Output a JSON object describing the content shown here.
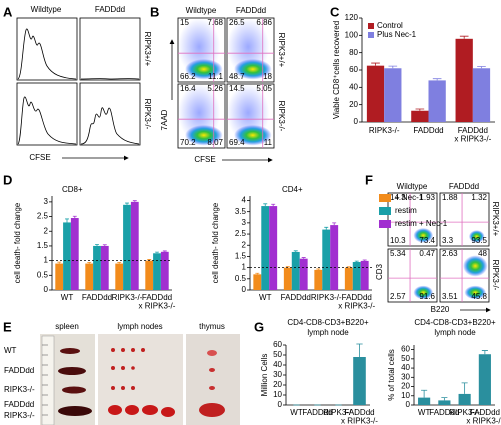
{
  "panel_labels": [
    "A",
    "B",
    "C",
    "D",
    "E",
    "F",
    "G"
  ],
  "panel_a": {
    "columns": [
      "Wildtype",
      "FADDdd"
    ],
    "rows": [
      "RIPK3+/+",
      "RIPK3-/-"
    ],
    "x_label": "CFSE"
  },
  "panel_b": {
    "columns": [
      "Wildtype",
      "FADDdd"
    ],
    "rows": [
      "RIPK3+/+",
      "RIPK3-/-"
    ],
    "x_label": "CFSE",
    "y_label": "7AAD",
    "quadrants": [
      [
        [
          15,
          7.68,
          66.2,
          11.1
        ],
        [
          26.5,
          6.86,
          48.7,
          18
        ]
      ],
      [
        [
          16.4,
          5.26,
          70.2,
          8.07
        ],
        [
          14.5,
          5.05,
          69.4,
          11
        ]
      ]
    ]
  },
  "panel_e": {
    "columns": [
      "spleen",
      "lymph nodes",
      "thymus"
    ],
    "rows": [
      "WT",
      "FADDdd",
      "RIPK3-/-",
      [
        "FADDdd",
        "RIPK3-/-"
      ]
    ]
  },
  "panel_f": {
    "columns": [
      "Wildtype",
      "FADDdd"
    ],
    "rows": [
      "RIPK3+/+",
      "RIPK3-/-"
    ],
    "x_label": "B220",
    "y_label": "CD3",
    "quadrants": [
      [
        [
          14.3,
          1.93,
          10.3,
          73.4
        ],
        [
          1.88,
          1.32,
          3.3,
          93.5
        ]
      ],
      [
        [
          5.34,
          0.47,
          2.57,
          91.6
        ],
        [
          2.63,
          48,
          3.51,
          45.8
        ]
      ]
    ]
  },
  "chart_data": [
    {
      "type": "bar",
      "y_label": "Viable CD8⁺cells recovered",
      "categories": [
        "RIPK3-/-",
        "FADDdd",
        [
          "FADDdd",
          "x RIPK3-/-"
        ]
      ],
      "series": [
        {
          "name": "Control",
          "color": "#b01c22",
          "values": [
            65,
            13,
            96
          ],
          "errors": [
            3,
            2,
            3
          ]
        },
        {
          "name": "Plus Nec-1",
          "color": "#7f7fe0",
          "values": [
            62,
            48,
            62
          ],
          "errors": [
            2.5,
            2,
            2
          ]
        }
      ],
      "ylim": [
        0,
        120
      ],
      "yticks": [
        0,
        20,
        40,
        60,
        80,
        100,
        120
      ],
      "legend": "upper left"
    },
    {
      "type": "bar",
      "title": "CD8+",
      "y_label": "cell death- fold change",
      "categories": [
        "WT",
        "FADDdd",
        "RIPK3-/-",
        [
          "FADDdd",
          "x RIPK3-/-"
        ]
      ],
      "series": [
        {
          "color": "#f28c1c",
          "values": [
            0.9,
            0.9,
            0.9,
            1.0
          ],
          "errors": [
            0.05,
            0.04,
            0.04,
            0.04
          ]
        },
        {
          "color": "#1aa0a8",
          "values": [
            2.3,
            1.5,
            2.9,
            1.25
          ],
          "errors": [
            0.12,
            0.05,
            0.06,
            0.04
          ]
        },
        {
          "color": "#a12fd0",
          "values": [
            2.45,
            1.5,
            3.0,
            1.3
          ],
          "errors": [
            0.06,
            0.04,
            0.04,
            0.03
          ]
        }
      ],
      "ylim": [
        0,
        3.2
      ],
      "yticks": [
        0,
        0.5,
        1,
        1.5,
        2,
        2.5,
        3
      ],
      "hline": 1
    },
    {
      "type": "bar",
      "title": "CD4+",
      "y_label": "cell death- fold change",
      "categories": [
        "WT",
        "FADDdd",
        "RIPK3-/-",
        [
          "FADDdd",
          "x RIPK3-/-"
        ]
      ],
      "series": [
        {
          "name": "+ Nec-1",
          "color": "#f28c1c",
          "values": [
            0.7,
            1.0,
            0.9,
            1.0
          ],
          "errors": [
            0.05,
            0.05,
            0.04,
            0.04
          ]
        },
        {
          "name": "restim",
          "color": "#1aa0a8",
          "values": [
            3.75,
            1.7,
            2.7,
            1.25
          ],
          "errors": [
            0.1,
            0.05,
            0.1,
            0.04
          ]
        },
        {
          "name": "restim + Nec-1",
          "color": "#a12fd0",
          "values": [
            3.75,
            1.4,
            2.9,
            1.3
          ],
          "errors": [
            0.08,
            0.05,
            0.1,
            0.04
          ]
        }
      ],
      "ylim": [
        0,
        4.2
      ],
      "yticks": [
        0,
        0.5,
        1,
        1.5,
        2,
        2.5,
        3,
        3.5,
        4
      ],
      "hline": 1,
      "legend": "right"
    },
    {
      "type": "bar",
      "title": "CD4-CD8-CD3+B220+",
      "subtitle": "lymph node",
      "y_label": "Million Cells",
      "categories": [
        "WT",
        "FADDdd",
        "RIPK3-/-",
        [
          "FADDdd",
          "x RIPK3-/-"
        ]
      ],
      "series": [
        {
          "color": "#2a8f9e",
          "values": [
            0,
            0,
            0,
            48
          ],
          "errors": [
            0,
            0,
            0,
            13
          ]
        }
      ],
      "ylim": [
        0,
        60
      ],
      "yticks": [
        0,
        10,
        20,
        30,
        40,
        50,
        60
      ]
    },
    {
      "type": "bar",
      "title": "CD4-CD8-CD3+B220+",
      "subtitle": "lymph node",
      "y_label": "% of total cells",
      "categories": [
        "WT",
        "FADDdd",
        "RIPK3-/-",
        [
          "FADDdd",
          "x RIPK3-/-"
        ]
      ],
      "series": [
        {
          "color": "#2a8f9e",
          "values": [
            8,
            5,
            12,
            55
          ],
          "errors": [
            8,
            3,
            12,
            4
          ]
        }
      ],
      "ylim": [
        0,
        65
      ],
      "yticks": [
        0,
        10,
        20,
        30,
        40,
        50,
        60
      ]
    }
  ]
}
